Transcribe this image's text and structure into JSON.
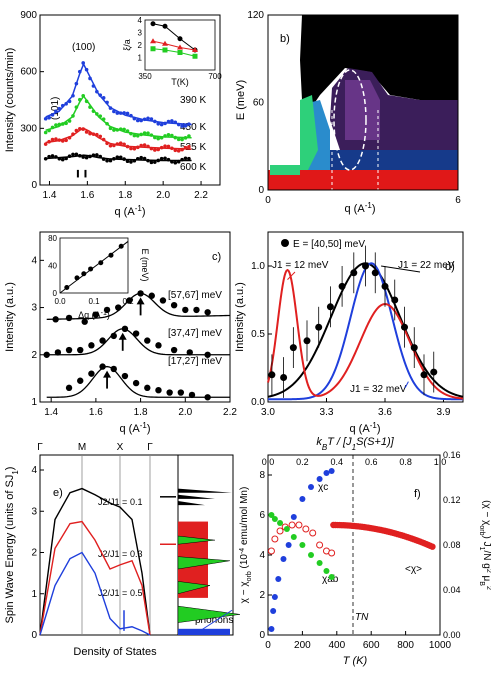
{
  "chart_data": [
    {
      "panel": "a)",
      "type": "scatter",
      "xlabel": "q (A⁻¹)",
      "ylabel": "Intensity (counts/min)",
      "xlim": [
        1.35,
        2.3
      ],
      "ylim": [
        0,
        900
      ],
      "xticks": [
        "1.4",
        "1.6",
        "1.8",
        "2.0",
        "2.2"
      ],
      "yticks": [
        "0",
        "300",
        "600",
        "900"
      ],
      "peak_labels": [
        "(100)",
        "(101)"
      ],
      "series": [
        {
          "name": "390 K",
          "color": "#1f3fdc",
          "fit": [
            [
              1.38,
              360
            ],
            [
              1.45,
              390
            ],
            [
              1.52,
              470
            ],
            [
              1.56,
              590
            ],
            [
              1.58,
              640
            ],
            [
              1.61,
              580
            ],
            [
              1.66,
              480
            ],
            [
              1.72,
              410
            ],
            [
              1.8,
              370
            ],
            [
              1.9,
              345
            ],
            [
              2.0,
              330
            ],
            [
              2.15,
              320
            ]
          ]
        },
        {
          "name": "450 K",
          "color": "#22cc22",
          "fit": [
            [
              1.38,
              290
            ],
            [
              1.45,
              310
            ],
            [
              1.52,
              360
            ],
            [
              1.56,
              440
            ],
            [
              1.58,
              470
            ],
            [
              1.61,
              430
            ],
            [
              1.66,
              360
            ],
            [
              1.72,
              310
            ],
            [
              1.8,
              280
            ],
            [
              1.9,
              265
            ],
            [
              2.0,
              255
            ],
            [
              2.15,
              250
            ]
          ]
        },
        {
          "name": "525 K",
          "color": "#e02020",
          "fit": [
            [
              1.38,
              225
            ],
            [
              1.45,
              235
            ],
            [
              1.52,
              260
            ],
            [
              1.56,
              290
            ],
            [
              1.58,
              300
            ],
            [
              1.61,
              285
            ],
            [
              1.66,
              250
            ],
            [
              1.72,
              220
            ],
            [
              1.8,
              205
            ],
            [
              1.9,
              200
            ],
            [
              2.0,
              195
            ],
            [
              2.15,
              190
            ]
          ]
        },
        {
          "name": "600 K",
          "color": "#000000",
          "fit": [
            [
              1.38,
              140
            ],
            [
              1.45,
              145
            ],
            [
              1.52,
              150
            ],
            [
              1.56,
              155
            ],
            [
              1.58,
              158
            ],
            [
              1.61,
              155
            ],
            [
              1.66,
              145
            ],
            [
              1.72,
              138
            ],
            [
              1.8,
              135
            ],
            [
              1.9,
              132
            ],
            [
              2.0,
              130
            ],
            [
              2.15,
              130
            ]
          ]
        }
      ],
      "inset": {
        "type": "line",
        "xlabel": "T(K)",
        "ylabel": "ξ/a",
        "xlim": [
          350,
          700
        ],
        "ylim": [
          0,
          4
        ],
        "xticks": [
          "350",
          "700"
        ],
        "yticks": [
          "1",
          "2",
          "3",
          "4"
        ],
        "series": [
          {
            "color": "#000000",
            "x": [
              390,
              450,
              525,
              600
            ],
            "y": [
              3.7,
              3.5,
              2.5,
              1.6
            ]
          },
          {
            "color": "#e02020",
            "x": [
              390,
              450,
              525,
              600
            ],
            "y": [
              2.3,
              2.1,
              1.8,
              1.6
            ]
          },
          {
            "color": "#22cc22",
            "x": [
              390,
              450,
              525,
              600
            ],
            "y": [
              1.7,
              1.6,
              1.4,
              1.1
            ]
          }
        ]
      }
    },
    {
      "panel": "b)",
      "type": "heatmap",
      "xlabel": "q (A⁻¹)",
      "ylabel": "E (meV)",
      "xlim": [
        0,
        6
      ],
      "ylim": [
        0,
        120
      ],
      "xticks": [
        "0",
        "6"
      ],
      "yticks": [
        "0",
        "60",
        "120"
      ]
    },
    {
      "panel": "c)",
      "type": "scatter",
      "xlabel": "q (A⁻¹)",
      "ylabel": "Intensity (a.u.)",
      "xlim": [
        1.35,
        2.2
      ],
      "ylim": [
        1,
        4.6
      ],
      "xticks": [
        "1.4",
        "1.6",
        "1.8",
        "2.0",
        "2.2"
      ],
      "yticks": [
        "1",
        "2",
        "3",
        "4"
      ],
      "series": [
        {
          "name": "[57,67] meV",
          "peak": 1.8,
          "x": [
            1.42,
            1.48,
            1.55,
            1.6,
            1.65,
            1.7,
            1.75,
            1.8,
            1.85,
            1.9,
            1.95,
            2.0,
            2.05,
            2.1
          ],
          "y": [
            2.75,
            2.78,
            2.7,
            2.85,
            2.95,
            3.0,
            3.15,
            3.3,
            3.25,
            3.15,
            3.05,
            2.95,
            2.95,
            2.9
          ]
        },
        {
          "name": "[37,47] meV",
          "peak": 1.72,
          "x": [
            1.38,
            1.43,
            1.48,
            1.53,
            1.58,
            1.63,
            1.68,
            1.73,
            1.78,
            1.83,
            1.88,
            1.95,
            2.02,
            2.1
          ],
          "y": [
            2.0,
            2.05,
            2.1,
            2.1,
            2.2,
            2.3,
            2.4,
            2.55,
            2.45,
            2.3,
            2.2,
            2.1,
            2.05,
            2.0
          ]
        },
        {
          "name": "[17,27] meV",
          "peak": 1.65,
          "x": [
            1.48,
            1.53,
            1.58,
            1.63,
            1.68,
            1.73,
            1.78,
            1.83,
            1.88,
            1.93,
            1.98,
            2.03,
            2.1
          ],
          "y": [
            1.3,
            1.45,
            1.6,
            1.75,
            1.7,
            1.55,
            1.4,
            1.3,
            1.25,
            1.2,
            1.2,
            1.15,
            1.1
          ]
        }
      ],
      "inset": {
        "type": "line",
        "xlabel": "Δq (A⁻¹)",
        "ylabel": "E (meV)",
        "xlim": [
          0,
          0.2
        ],
        "ylim": [
          0,
          80
        ],
        "xticks": [
          "0.0",
          "0.1",
          "0.2"
        ],
        "yticks": [
          "0",
          "40",
          "80"
        ],
        "x": [
          0.02,
          0.05,
          0.07,
          0.09,
          0.12,
          0.15,
          0.18
        ],
        "y": [
          8,
          22,
          28,
          35,
          44,
          55,
          68
        ]
      }
    },
    {
      "panel": "d)",
      "type": "line",
      "xlabel": "q (A⁻¹)",
      "ylabel": "Intensity (a.u.)",
      "xlim": [
        3.0,
        4.0
      ],
      "ylim": [
        0,
        1.25
      ],
      "xticks": [
        "3.0",
        "3.3",
        "3.6",
        "3.9"
      ],
      "yticks": [
        "0.0",
        "0.5",
        "1.0"
      ],
      "legend": "E = [40,50] meV",
      "annotations": [
        "J1 = 12 meV",
        "J1 = 22 meV",
        "J1 = 32 meV"
      ],
      "points": {
        "x": [
          3.02,
          3.08,
          3.13,
          3.2,
          3.26,
          3.32,
          3.38,
          3.44,
          3.5,
          3.55,
          3.6,
          3.65,
          3.7,
          3.75,
          3.8,
          3.85
        ],
        "y": [
          0.2,
          0.18,
          0.4,
          0.45,
          0.55,
          0.7,
          0.85,
          0.95,
          1.0,
          0.95,
          0.85,
          0.75,
          0.55,
          0.4,
          0.2,
          0.22
        ]
      },
      "series": [
        {
          "name": "J1 = 22 meV",
          "color": "#000000",
          "peak": 3.5,
          "width": 0.25,
          "amp": 1.0
        },
        {
          "name": "J1 = 32 meV",
          "color": "#1f3fdc",
          "peak": 3.53,
          "width": 0.15,
          "amp": 1.0
        },
        {
          "name": "J1 = 12 meV",
          "color": "#e02020",
          "peak": 3.1,
          "width": 0.07,
          "amp": 0.95,
          "peak2": 3.6,
          "amp2": 0.7,
          "width2": 0.18
        }
      ]
    },
    {
      "panel": "e)",
      "type": "line",
      "xlabel": "Density of States",
      "ylabel": "Spin Wave Energy (units of SJ₁)",
      "ylim": [
        0,
        4
      ],
      "yticks": [
        "0",
        "1",
        "2",
        "3",
        "4"
      ],
      "xticks": [
        "Γ",
        "M",
        "X",
        "Γ"
      ],
      "annotations": [
        "J2/J1 = 0.1",
        "J2/J1 = 0.3",
        "J2/J1 = 0.5",
        "phonons"
      ],
      "series": [
        {
          "name": "J2/J1 = 0.1",
          "color": "#000000"
        },
        {
          "name": "J2/J1 = 0.3",
          "color": "#e02020"
        },
        {
          "name": "J2/J1 = 0.5",
          "color": "#1f3fdc"
        }
      ]
    },
    {
      "panel": "f)",
      "type": "scatter",
      "xlabel": "T (K)",
      "top_xlabel": "k_B T / [J₁ S(S+1)]",
      "ylabel": "χ − χ_orb (10⁻⁴ emu/mol Mn)",
      "right_ylabel": "(χ − χ_orb) J₁ / N g² μ_B²",
      "xlim": [
        0,
        1000
      ],
      "ylim": [
        0,
        9
      ],
      "xticks": [
        "0",
        "200",
        "400",
        "600",
        "800",
        "1000"
      ],
      "yticks": [
        "0",
        "2",
        "4",
        "6",
        "8"
      ],
      "top_ticks": [
        "0.0",
        "0.2",
        "0.4",
        "0.6",
        "0.8",
        "1.0"
      ],
      "right_ticks": [
        "0.00",
        "0.04",
        "0.08",
        "0.12",
        "0.16"
      ],
      "annotations": [
        "χc",
        "χab",
        "<χ>",
        "TN"
      ],
      "TN": 380
    }
  ],
  "labels": {
    "a_peak100": "(100)",
    "a_peak101": "(101)",
    "a_t390": "390 K",
    "a_t450": "450 K",
    "a_t525": "525 K",
    "a_t600": "600 K",
    "c_e1": "[57,67] meV",
    "c_e2": "[37,47] meV",
    "c_e3": "[17,27] meV",
    "e_ratio1": "0.1",
    "e_ratio2": "0.3",
    "e_ratio3": "0.5",
    "e_phonons": "phonons",
    "f_chic": "χc",
    "f_chiab": "χab",
    "f_chimean": "<χ>",
    "f_tn": "TN"
  }
}
